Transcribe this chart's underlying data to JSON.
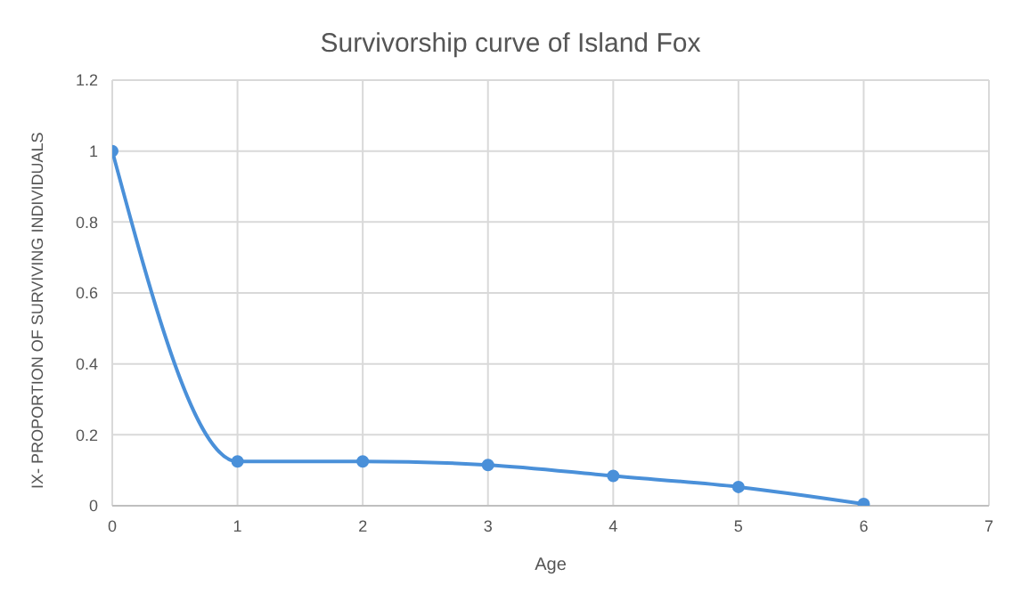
{
  "chart_data": {
    "type": "line",
    "title": "Survivorship curve of Island Fox",
    "xlabel": "Age",
    "ylabel": "IX- PROPORTION OF SURVIVING INDIVIDUALS",
    "x": [
      0,
      1,
      2,
      3,
      4,
      5,
      6
    ],
    "series": [
      {
        "color": "#4a90d9",
        "values": [
          1,
          0.125,
          0.125,
          0.115,
          0.084,
          0.053,
          0.005
        ]
      }
    ],
    "xlim": [
      0,
      7
    ],
    "xticks": [
      0,
      1,
      2,
      3,
      4,
      5,
      6,
      7
    ],
    "ylim": [
      0,
      1.2
    ],
    "yticks": [
      0,
      0.2,
      0.4,
      0.6,
      0.8,
      1,
      1.2
    ],
    "grid": true,
    "marker": "circle",
    "line_style": "solid"
  }
}
